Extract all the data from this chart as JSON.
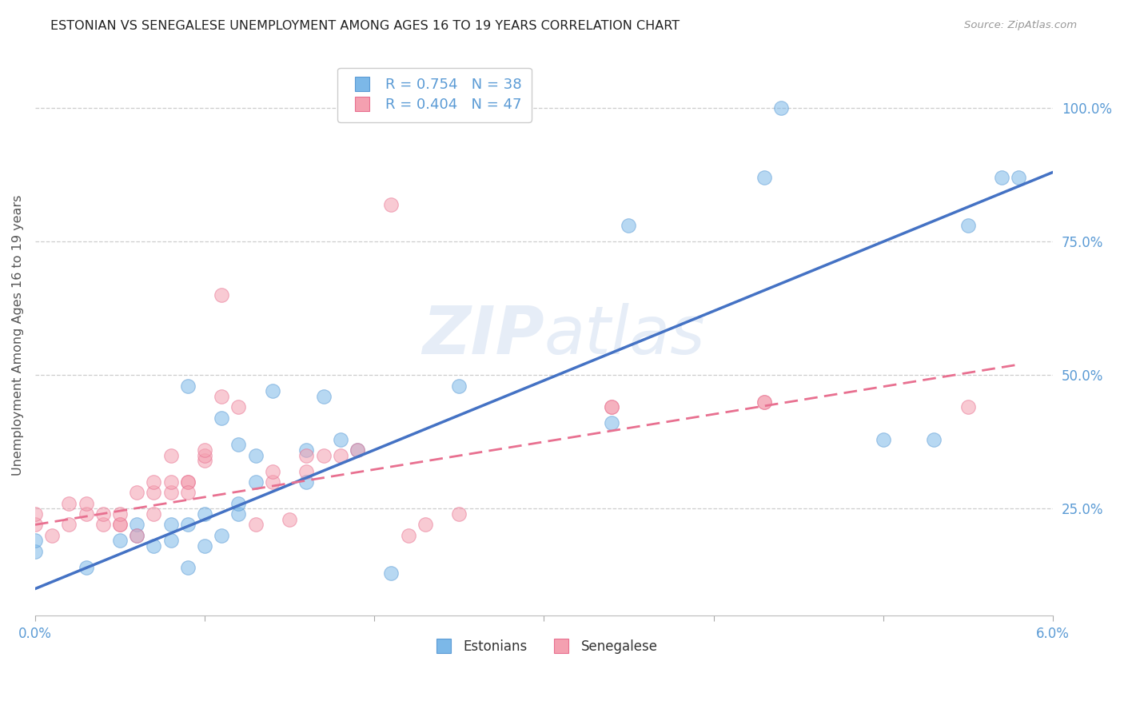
{
  "title": "ESTONIAN VS SENEGALESE UNEMPLOYMENT AMONG AGES 16 TO 19 YEARS CORRELATION CHART",
  "source": "Source: ZipAtlas.com",
  "ylabel": "Unemployment Among Ages 16 to 19 years",
  "xlim": [
    0.0,
    0.06
  ],
  "ylim": [
    0.05,
    1.1
  ],
  "xticks": [
    0.0,
    0.01,
    0.02,
    0.03,
    0.04,
    0.05,
    0.06
  ],
  "xticklabels_show": [
    "0.0%",
    "",
    "",
    "",
    "",
    "",
    "6.0%"
  ],
  "yticks_right": [
    0.25,
    0.5,
    0.75,
    1.0
  ],
  "yticklabels_right": [
    "25.0%",
    "50.0%",
    "75.0%",
    "100.0%"
  ],
  "legend_line1": "R = 0.754   N = 38",
  "legend_line2": "R = 0.404   N = 47",
  "blue_color": "#7CB8E8",
  "pink_color": "#F4A0B0",
  "blue_edge_color": "#5B9BD5",
  "pink_edge_color": "#E87090",
  "blue_line_color": "#4472C4",
  "pink_line_color": "#E87090",
  "axis_color": "#5B9BD5",
  "grid_color": "#C8C8C8",
  "title_color": "#222222",
  "watermark_color": "#C8D8EE",
  "blue_scatter_x": [
    0.0,
    0.0,
    0.003,
    0.005,
    0.006,
    0.006,
    0.007,
    0.008,
    0.008,
    0.009,
    0.009,
    0.009,
    0.01,
    0.01,
    0.011,
    0.011,
    0.012,
    0.012,
    0.012,
    0.013,
    0.013,
    0.014,
    0.016,
    0.016,
    0.017,
    0.018,
    0.019,
    0.021,
    0.025,
    0.034,
    0.035,
    0.043,
    0.044,
    0.05,
    0.053,
    0.055,
    0.057,
    0.058
  ],
  "blue_scatter_y": [
    0.17,
    0.19,
    0.14,
    0.19,
    0.2,
    0.22,
    0.18,
    0.19,
    0.22,
    0.14,
    0.22,
    0.48,
    0.18,
    0.24,
    0.2,
    0.42,
    0.24,
    0.26,
    0.37,
    0.3,
    0.35,
    0.47,
    0.3,
    0.36,
    0.46,
    0.38,
    0.36,
    0.13,
    0.48,
    0.41,
    0.78,
    0.87,
    1.0,
    0.38,
    0.38,
    0.78,
    0.87,
    0.87
  ],
  "pink_scatter_x": [
    0.0,
    0.0,
    0.001,
    0.002,
    0.002,
    0.003,
    0.003,
    0.004,
    0.004,
    0.005,
    0.005,
    0.005,
    0.006,
    0.006,
    0.007,
    0.007,
    0.007,
    0.008,
    0.008,
    0.008,
    0.009,
    0.009,
    0.009,
    0.01,
    0.01,
    0.01,
    0.011,
    0.011,
    0.012,
    0.013,
    0.014,
    0.014,
    0.015,
    0.016,
    0.016,
    0.017,
    0.018,
    0.019,
    0.021,
    0.022,
    0.023,
    0.025,
    0.034,
    0.034,
    0.043,
    0.043,
    0.055
  ],
  "pink_scatter_y": [
    0.22,
    0.24,
    0.2,
    0.22,
    0.26,
    0.24,
    0.26,
    0.22,
    0.24,
    0.22,
    0.22,
    0.24,
    0.2,
    0.28,
    0.24,
    0.28,
    0.3,
    0.28,
    0.3,
    0.35,
    0.3,
    0.3,
    0.28,
    0.34,
    0.35,
    0.36,
    0.65,
    0.46,
    0.44,
    0.22,
    0.3,
    0.32,
    0.23,
    0.32,
    0.35,
    0.35,
    0.35,
    0.36,
    0.82,
    0.2,
    0.22,
    0.24,
    0.44,
    0.44,
    0.45,
    0.45,
    0.44
  ],
  "blue_trend_x0": 0.0,
  "blue_trend_x1": 0.06,
  "blue_trend_y0": 0.1,
  "blue_trend_y1": 0.88,
  "pink_trend_x0": 0.0,
  "pink_trend_x1": 0.058,
  "pink_trend_y0": 0.22,
  "pink_trend_y1": 0.52
}
